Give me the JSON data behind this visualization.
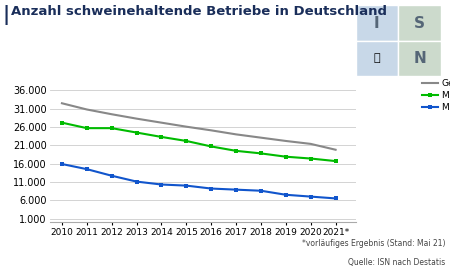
{
  "title": "Anzahl schweinehaltende Betriebe in Deutschland",
  "title_color": "#1a2e5a",
  "years": [
    2010,
    2011,
    2012,
    2013,
    2014,
    2015,
    2016,
    2017,
    2018,
    2019,
    2020,
    2021
  ],
  "gesamt": [
    32500,
    30800,
    29500,
    28300,
    27200,
    26100,
    25100,
    24000,
    23100,
    22200,
    21400,
    19800
  ],
  "mastschweinen": [
    27200,
    25700,
    25700,
    24500,
    23300,
    22200,
    20700,
    19500,
    18800,
    17900,
    17400,
    16700
  ],
  "sauen": [
    15900,
    14500,
    12700,
    11100,
    10300,
    10000,
    9200,
    8900,
    8600,
    7500,
    7000,
    6500
  ],
  "color_gesamt": "#888888",
  "color_mastschweine": "#00bb00",
  "color_sauen": "#1155cc",
  "ylabel_ticks": [
    1000,
    6000,
    11000,
    16000,
    21000,
    26000,
    31000,
    36000
  ],
  "background_color": "#ffffff",
  "grid_color": "#cccccc",
  "footnote1": "*vorläufiges Ergebnis (Stand: Mai 21)",
  "footnote2": "Quelle: ISN nach Destatis",
  "xlabel_last": "2021*",
  "logo_colors": [
    "#c8d8e8",
    "#d0e0d0",
    "#c8d8e8",
    "#d0e0d0"
  ],
  "logo_letters": [
    "I",
    "S",
    "",
    "N"
  ]
}
